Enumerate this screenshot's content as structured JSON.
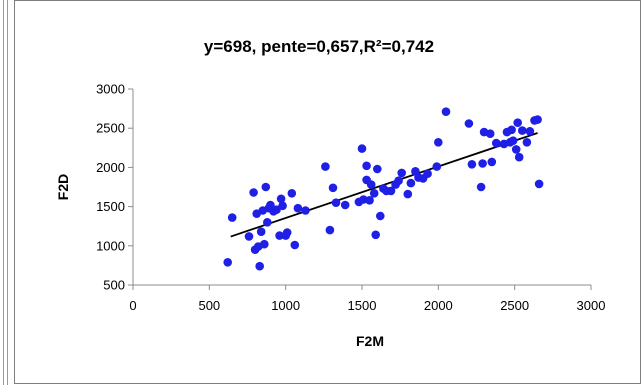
{
  "chart_data": {
    "type": "scatter",
    "title": "y=698, pente=0,657,R²=0,742",
    "xlabel": "F2M",
    "ylabel": "F2D",
    "xlim": [
      0,
      3000
    ],
    "ylim": [
      500,
      3000
    ],
    "xticks": [
      0,
      500,
      1000,
      1500,
      2000,
      2500,
      3000
    ],
    "yticks": [
      500,
      1000,
      1500,
      2000,
      2500,
      3000
    ],
    "grid": false,
    "legend": false,
    "point_color": "#1f1fe6",
    "line_color": "#000000",
    "trendline": {
      "x": [
        640,
        2650
      ],
      "y": [
        1118,
        2439
      ]
    },
    "points": [
      [
        620,
        790
      ],
      [
        650,
        1360
      ],
      [
        760,
        1120
      ],
      [
        790,
        1680
      ],
      [
        800,
        950
      ],
      [
        810,
        1410
      ],
      [
        820,
        990
      ],
      [
        830,
        740
      ],
      [
        840,
        1180
      ],
      [
        850,
        1450
      ],
      [
        860,
        1020
      ],
      [
        870,
        1750
      ],
      [
        880,
        1300
      ],
      [
        890,
        1480
      ],
      [
        900,
        1520
      ],
      [
        920,
        1440
      ],
      [
        940,
        1460
      ],
      [
        960,
        1130
      ],
      [
        970,
        1600
      ],
      [
        980,
        1510
      ],
      [
        1000,
        1130
      ],
      [
        1010,
        1170
      ],
      [
        1040,
        1670
      ],
      [
        1060,
        1010
      ],
      [
        1080,
        1480
      ],
      [
        1130,
        1450
      ],
      [
        1260,
        2010
      ],
      [
        1290,
        1200
      ],
      [
        1310,
        1740
      ],
      [
        1330,
        1550
      ],
      [
        1390,
        1520
      ],
      [
        1480,
        1560
      ],
      [
        1500,
        2240
      ],
      [
        1510,
        1590
      ],
      [
        1530,
        1840
      ],
      [
        1530,
        2020
      ],
      [
        1550,
        1580
      ],
      [
        1560,
        1780
      ],
      [
        1580,
        1670
      ],
      [
        1590,
        1140
      ],
      [
        1600,
        1980
      ],
      [
        1620,
        1380
      ],
      [
        1640,
        1730
      ],
      [
        1660,
        1700
      ],
      [
        1690,
        1700
      ],
      [
        1720,
        1780
      ],
      [
        1740,
        1830
      ],
      [
        1760,
        1930
      ],
      [
        1800,
        1660
      ],
      [
        1820,
        1800
      ],
      [
        1850,
        1950
      ],
      [
        1870,
        1870
      ],
      [
        1900,
        1860
      ],
      [
        1930,
        1920
      ],
      [
        1990,
        2010
      ],
      [
        2000,
        2320
      ],
      [
        2050,
        2710
      ],
      [
        2200,
        2560
      ],
      [
        2220,
        2040
      ],
      [
        2280,
        1750
      ],
      [
        2290,
        2050
      ],
      [
        2300,
        2450
      ],
      [
        2340,
        2430
      ],
      [
        2350,
        2070
      ],
      [
        2380,
        2310
      ],
      [
        2430,
        2300
      ],
      [
        2450,
        2450
      ],
      [
        2470,
        2320
      ],
      [
        2480,
        2480
      ],
      [
        2490,
        2340
      ],
      [
        2510,
        2230
      ],
      [
        2520,
        2570
      ],
      [
        2530,
        2130
      ],
      [
        2550,
        2470
      ],
      [
        2580,
        2320
      ],
      [
        2600,
        2460
      ],
      [
        2630,
        2600
      ],
      [
        2650,
        2610
      ],
      [
        2660,
        1790
      ]
    ]
  }
}
